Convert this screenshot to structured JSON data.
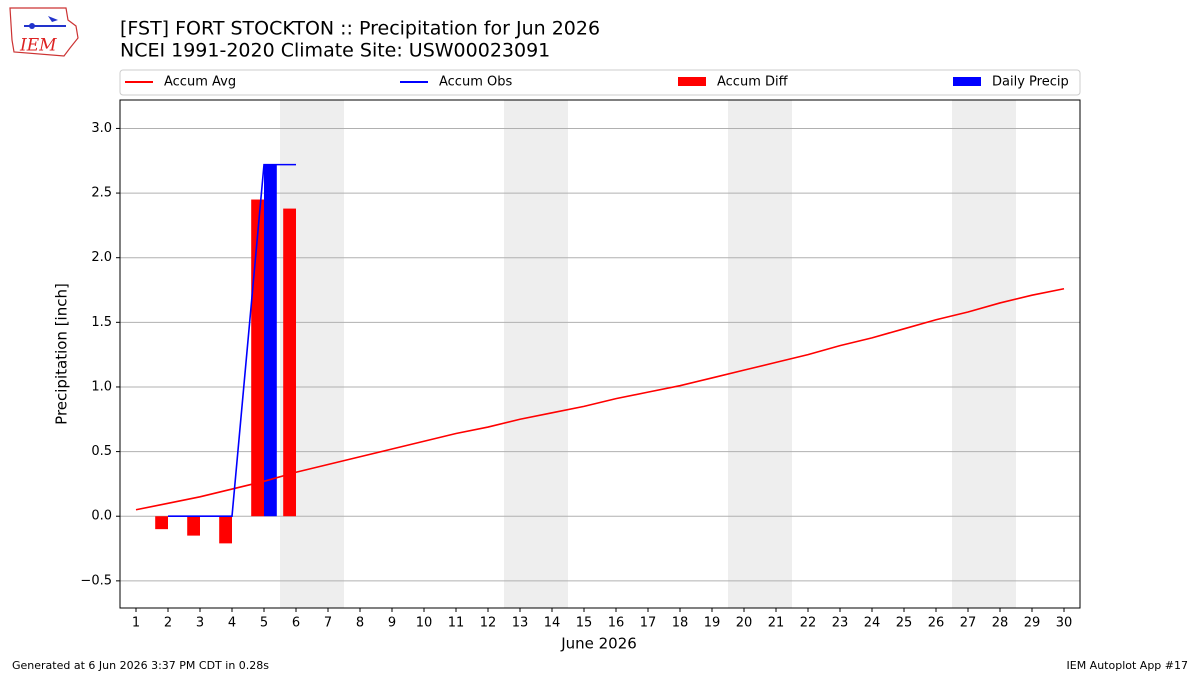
{
  "logo": "IEM",
  "footer_left": "Generated at 6 Jun 2026 3:37 PM CDT in 0.28s",
  "footer_right": "IEM Autoplot App #17",
  "chart_data": {
    "type": "combo",
    "title": "[FST] FORT STOCKTON :: Precipitation for Jun 2026",
    "subtitle": "NCEI 1991-2020 Climate Site: USW00023091",
    "xlabel": "June 2026",
    "ylabel": "Precipitation [inch]",
    "x": [
      1,
      2,
      3,
      4,
      5,
      6,
      7,
      8,
      9,
      10,
      11,
      12,
      13,
      14,
      15,
      16,
      17,
      18,
      19,
      20,
      21,
      22,
      23,
      24,
      25,
      26,
      27,
      28,
      29,
      30
    ],
    "xlim": [
      0.5,
      30.5
    ],
    "xticks": [
      1,
      2,
      3,
      4,
      5,
      6,
      7,
      8,
      9,
      10,
      11,
      12,
      13,
      14,
      15,
      16,
      17,
      18,
      19,
      20,
      21,
      22,
      23,
      24,
      25,
      26,
      27,
      28,
      29,
      30
    ],
    "ylim": [
      -0.71,
      3.22
    ],
    "yticks": [
      {
        "value": -0.5,
        "label": "−0.5"
      },
      {
        "value": 0,
        "label": "0.0"
      },
      0.5,
      {
        "value": 1,
        "label": "1.0"
      },
      1.5,
      {
        "value": 2,
        "label": "2.0"
      },
      2.5,
      {
        "value": 3,
        "label": "3.0"
      }
    ],
    "grid": true,
    "shaded_spans": [
      [
        5.5,
        7.5
      ],
      [
        12.5,
        14.5
      ],
      [
        19.5,
        21.5
      ],
      [
        26.5,
        28.5
      ]
    ],
    "shade_color": "#eeeeee",
    "series": [
      {
        "name": "Accum Avg",
        "type": "line",
        "color": "#ff0000",
        "values": [
          0.05,
          0.1,
          0.15,
          0.21,
          0.27,
          0.34,
          0.4,
          0.46,
          0.52,
          0.58,
          0.64,
          0.69,
          0.75,
          0.8,
          0.85,
          0.91,
          0.96,
          1.01,
          1.07,
          1.13,
          1.19,
          1.25,
          1.32,
          1.38,
          1.45,
          1.52,
          1.58,
          1.65,
          1.71,
          1.76
        ]
      },
      {
        "name": "Accum Obs",
        "type": "line",
        "color": "#0000ff",
        "values": [
          null,
          0,
          0,
          0,
          2.72,
          2.72,
          null,
          null,
          null,
          null,
          null,
          null,
          null,
          null,
          null,
          null,
          null,
          null,
          null,
          null,
          null,
          null,
          null,
          null,
          null,
          null,
          null,
          null,
          null,
          null
        ]
      },
      {
        "name": "Accum Diff",
        "type": "bar",
        "color": "#ff0000",
        "values": [
          null,
          -0.1,
          -0.15,
          -0.21,
          2.45,
          2.38,
          null,
          null,
          null,
          null,
          null,
          null,
          null,
          null,
          null,
          null,
          null,
          null,
          null,
          null,
          null,
          null,
          null,
          null,
          null,
          null,
          null,
          null,
          null,
          null
        ]
      },
      {
        "name": "Daily Precip",
        "type": "bar",
        "color": "#0000ff",
        "values": [
          null,
          0,
          0,
          0,
          2.72,
          0,
          null,
          null,
          null,
          null,
          null,
          null,
          null,
          null,
          null,
          null,
          null,
          null,
          null,
          null,
          null,
          null,
          null,
          null,
          null,
          null,
          null,
          null,
          null,
          null
        ]
      }
    ]
  }
}
